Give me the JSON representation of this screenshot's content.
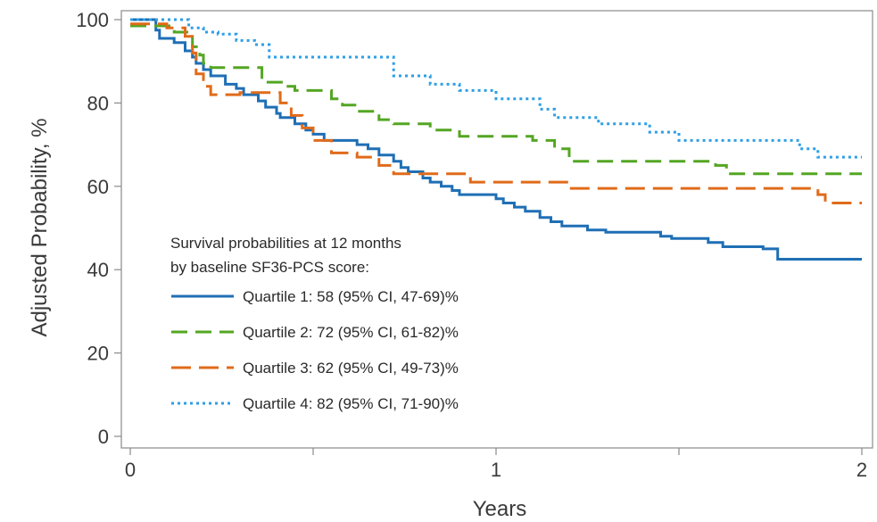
{
  "chart_data": {
    "type": "line",
    "step": true,
    "xlabel": "Years",
    "ylabel": "Adjusted Probability, %",
    "xlim": [
      0,
      2
    ],
    "ylim": [
      0,
      100
    ],
    "xticks": [
      0,
      0.5,
      1,
      1.5,
      2
    ],
    "xtick_labels": [
      "0",
      "",
      "1",
      "",
      "2"
    ],
    "yticks": [
      0,
      20,
      40,
      60,
      80,
      100
    ],
    "ytick_labels": [
      "0",
      "20",
      "40",
      "60",
      "80",
      "100"
    ],
    "grid": false,
    "legend": {
      "placement": "bottom-left",
      "title_lines": [
        "Survival probabilities at 12 months",
        "by baseline SF36-PCS score:"
      ]
    },
    "series": [
      {
        "name": "Quartile 1: 58 (95% CI, 47-69)%",
        "color": "#1f6fb5",
        "dash": "solid",
        "points": [
          [
            0,
            100
          ],
          [
            0.07,
            97.5
          ],
          [
            0.08,
            95.5
          ],
          [
            0.12,
            94.5
          ],
          [
            0.15,
            92.5
          ],
          [
            0.17,
            91
          ],
          [
            0.18,
            89.5
          ],
          [
            0.2,
            88
          ],
          [
            0.22,
            86.5
          ],
          [
            0.26,
            84.5
          ],
          [
            0.29,
            83.5
          ],
          [
            0.31,
            82
          ],
          [
            0.35,
            80.5
          ],
          [
            0.37,
            79
          ],
          [
            0.4,
            77.5
          ],
          [
            0.41,
            76.5
          ],
          [
            0.45,
            75
          ],
          [
            0.48,
            73.5
          ],
          [
            0.5,
            72.5
          ],
          [
            0.53,
            71
          ],
          [
            0.62,
            70
          ],
          [
            0.65,
            69
          ],
          [
            0.68,
            67.5
          ],
          [
            0.72,
            66
          ],
          [
            0.74,
            64.5
          ],
          [
            0.76,
            63.5
          ],
          [
            0.8,
            62
          ],
          [
            0.82,
            61
          ],
          [
            0.85,
            60
          ],
          [
            0.88,
            59
          ],
          [
            0.9,
            58
          ],
          [
            1.0,
            57
          ],
          [
            1.02,
            56
          ],
          [
            1.05,
            55
          ],
          [
            1.08,
            54
          ],
          [
            1.12,
            52.5
          ],
          [
            1.15,
            51.5
          ],
          [
            1.18,
            50.5
          ],
          [
            1.25,
            49.5
          ],
          [
            1.3,
            49
          ],
          [
            1.45,
            48
          ],
          [
            1.48,
            47.5
          ],
          [
            1.58,
            46.5
          ],
          [
            1.62,
            45.5
          ],
          [
            1.73,
            45
          ],
          [
            1.77,
            42.5
          ],
          [
            2.0,
            42.5
          ]
        ]
      },
      {
        "name": "Quartile 2: 72 (95% CI, 61-82)%",
        "color": "#54a623",
        "dash": "long-dash",
        "points": [
          [
            0,
            98.5
          ],
          [
            0.12,
            97
          ],
          [
            0.17,
            93.5
          ],
          [
            0.19,
            91.5
          ],
          [
            0.2,
            89.5
          ],
          [
            0.22,
            88.5
          ],
          [
            0.36,
            85
          ],
          [
            0.42,
            84
          ],
          [
            0.45,
            83
          ],
          [
            0.55,
            81
          ],
          [
            0.58,
            79.5
          ],
          [
            0.62,
            78
          ],
          [
            0.68,
            76
          ],
          [
            0.72,
            75
          ],
          [
            0.82,
            73.5
          ],
          [
            0.9,
            72
          ],
          [
            1.1,
            71
          ],
          [
            1.16,
            69
          ],
          [
            1.2,
            66
          ],
          [
            1.6,
            65
          ],
          [
            1.63,
            63
          ],
          [
            2.0,
            63
          ]
        ]
      },
      {
        "name": "Quartile 3: 62 (95% CI, 49-73)%",
        "color": "#e06b1a",
        "dash": "dash",
        "points": [
          [
            0,
            99
          ],
          [
            0.1,
            98
          ],
          [
            0.15,
            96
          ],
          [
            0.17,
            92
          ],
          [
            0.18,
            87
          ],
          [
            0.2,
            84
          ],
          [
            0.22,
            82
          ],
          [
            0.3,
            82.5
          ],
          [
            0.38,
            82.5
          ],
          [
            0.41,
            80
          ],
          [
            0.44,
            77
          ],
          [
            0.47,
            74
          ],
          [
            0.5,
            71
          ],
          [
            0.55,
            68
          ],
          [
            0.62,
            67
          ],
          [
            0.68,
            65
          ],
          [
            0.72,
            63
          ],
          [
            0.85,
            63
          ],
          [
            0.93,
            61
          ],
          [
            1.15,
            61
          ],
          [
            1.2,
            59.5
          ],
          [
            1.6,
            59.5
          ],
          [
            1.88,
            58
          ],
          [
            1.9,
            56
          ],
          [
            2.0,
            56
          ]
        ]
      },
      {
        "name": "Quartile 4: 82 (95% CI, 71-90)%",
        "color": "#2e9fe6",
        "dash": "dot",
        "points": [
          [
            0,
            100
          ],
          [
            0.12,
            100
          ],
          [
            0.16,
            98
          ],
          [
            0.2,
            97
          ],
          [
            0.24,
            96.5
          ],
          [
            0.29,
            95
          ],
          [
            0.34,
            94
          ],
          [
            0.38,
            91
          ],
          [
            0.55,
            91
          ],
          [
            0.6,
            91
          ],
          [
            0.7,
            91
          ],
          [
            0.72,
            86.5
          ],
          [
            0.8,
            86.5
          ],
          [
            0.82,
            84.5
          ],
          [
            0.88,
            84.5
          ],
          [
            0.9,
            83
          ],
          [
            0.97,
            83
          ],
          [
            1.0,
            81
          ],
          [
            1.1,
            81
          ],
          [
            1.12,
            78.5
          ],
          [
            1.16,
            76.5
          ],
          [
            1.25,
            76.5
          ],
          [
            1.28,
            75
          ],
          [
            1.38,
            75
          ],
          [
            1.42,
            73
          ],
          [
            1.48,
            73
          ],
          [
            1.5,
            71
          ],
          [
            1.7,
            71
          ],
          [
            1.83,
            69
          ],
          [
            1.88,
            67
          ],
          [
            2.0,
            67
          ]
        ]
      }
    ]
  }
}
